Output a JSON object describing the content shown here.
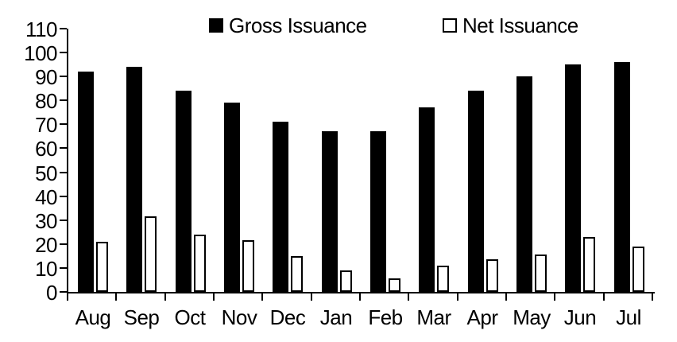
{
  "chart_data": {
    "type": "bar",
    "title": "",
    "xlabel": "",
    "ylabel": "",
    "categories": [
      "Aug",
      "Sep",
      "Oct",
      "Nov",
      "Dec",
      "Jan",
      "Feb",
      "Mar",
      "Apr",
      "May",
      "Jun",
      "Jul"
    ],
    "series": [
      {
        "name": "Gross Issuance",
        "style": "filled",
        "fill": "#000000",
        "outline": "#000000",
        "values": [
          92,
          94,
          84,
          79,
          71,
          67,
          67,
          77,
          84,
          90,
          95,
          96
        ]
      },
      {
        "name": "Net Issuance",
        "style": "outline",
        "fill": "#ffffff",
        "outline": "#000000",
        "values": [
          21,
          31.5,
          24,
          21.5,
          15,
          9,
          5.5,
          11,
          13.5,
          15.5,
          23,
          19
        ]
      }
    ],
    "ylim": [
      0,
      110
    ],
    "ytick_step": 10,
    "yticks": [
      0,
      10,
      20,
      30,
      40,
      50,
      60,
      70,
      80,
      90,
      100,
      110
    ],
    "grid": false,
    "legend_position": "top"
  },
  "colors": {
    "background": "#ffffff",
    "text": "#000000",
    "axis": "#000000",
    "gross_fill": "#000000",
    "net_fill": "#ffffff",
    "net_outline": "#000000"
  }
}
